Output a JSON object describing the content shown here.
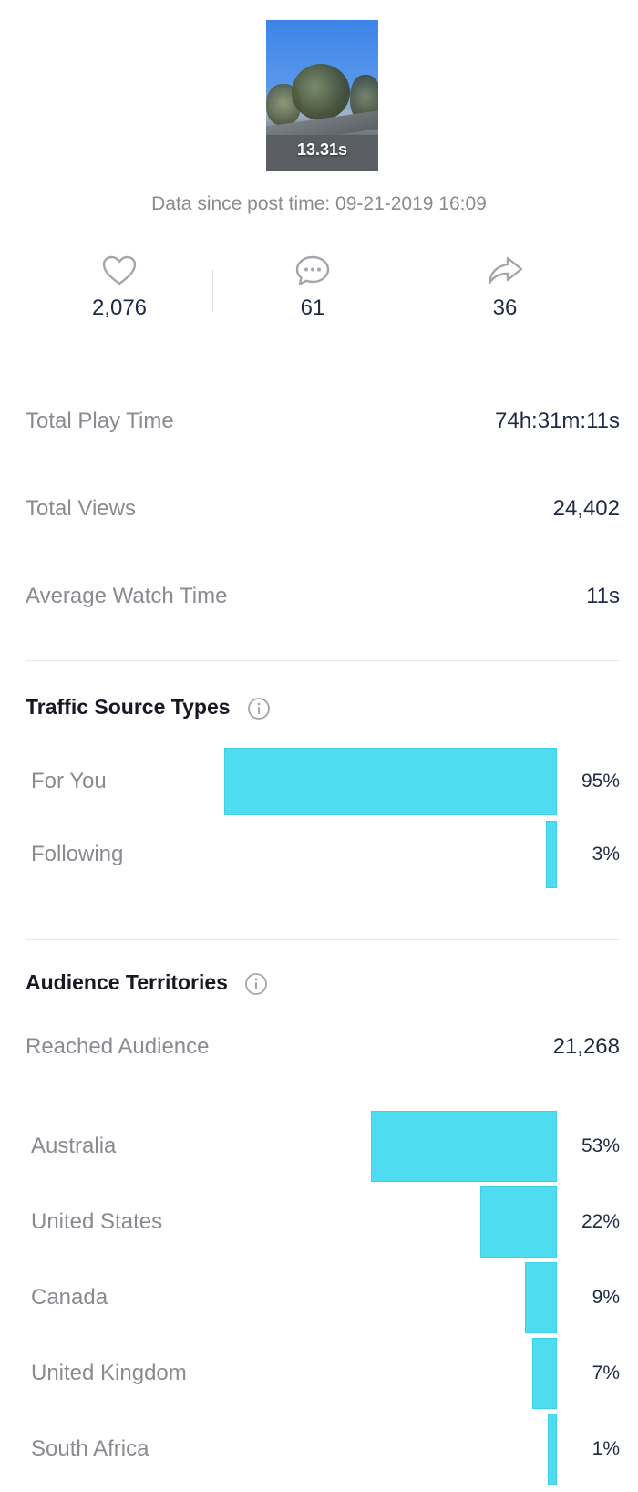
{
  "video": {
    "duration": "13.31s",
    "data_since": "Data since post time: 09-21-2019 16:09"
  },
  "stats": {
    "likes": {
      "icon": "heart-icon",
      "value": "2,076"
    },
    "comments": {
      "icon": "comment-icon",
      "value": "61"
    },
    "shares": {
      "icon": "share-icon",
      "value": "36"
    }
  },
  "metrics": {
    "play_time": {
      "label": "Total Play Time",
      "value": "74h:31m:11s"
    },
    "views": {
      "label": "Total Views",
      "value": "24,402"
    },
    "avg_watch": {
      "label": "Average Watch Time",
      "value": "11s"
    }
  },
  "traffic": {
    "title": "Traffic Source Types",
    "items": [
      {
        "label": "For You",
        "percent": 95,
        "display": "95%"
      },
      {
        "label": "Following",
        "percent": 3,
        "display": "3%"
      }
    ]
  },
  "audience": {
    "title": "Audience Territories",
    "reached_label": "Reached Audience",
    "reached_value": "21,268",
    "items": [
      {
        "label": "Australia",
        "percent": 53,
        "display": "53%"
      },
      {
        "label": "United States",
        "percent": 22,
        "display": "22%"
      },
      {
        "label": "Canada",
        "percent": 9,
        "display": "9%"
      },
      {
        "label": "United Kingdom",
        "percent": 7,
        "display": "7%"
      },
      {
        "label": "South Africa",
        "percent": 1,
        "display": "1%"
      }
    ]
  },
  "colors": {
    "bar": "#4ddcf0",
    "muted_text": "#8a8b91",
    "value_text": "#1f2a44"
  }
}
